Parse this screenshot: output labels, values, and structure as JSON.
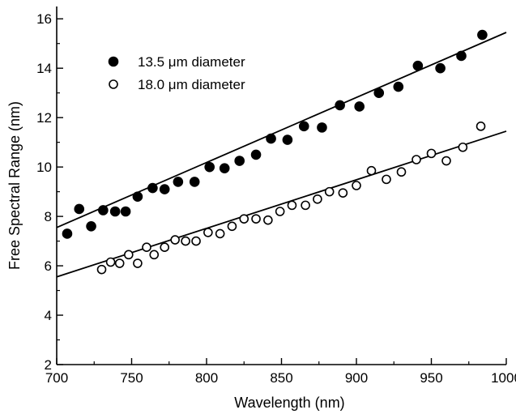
{
  "chart_data": {
    "type": "scatter",
    "xlabel": "Wavelength (nm)",
    "ylabel": "Free Spectral Range (nm)",
    "xlim": [
      700,
      1000
    ],
    "ylim": [
      2,
      16.5
    ],
    "x_ticks": [
      700,
      750,
      800,
      850,
      900,
      950,
      1000
    ],
    "y_ticks": [
      2,
      4,
      6,
      8,
      10,
      12,
      14,
      16
    ],
    "grid": false,
    "legend_position": "top-left",
    "series": [
      {
        "name": "13.5 μm diameter",
        "marker": "filled-circle",
        "color": "#000000",
        "points": [
          [
            707,
            7.3
          ],
          [
            715,
            8.3
          ],
          [
            723,
            7.6
          ],
          [
            731,
            8.25
          ],
          [
            739,
            8.2
          ],
          [
            746,
            8.2
          ],
          [
            754,
            8.8
          ],
          [
            764,
            9.15
          ],
          [
            772,
            9.1
          ],
          [
            781,
            9.4
          ],
          [
            792,
            9.4
          ],
          [
            802,
            10.0
          ],
          [
            812,
            9.95
          ],
          [
            822,
            10.25
          ],
          [
            833,
            10.5
          ],
          [
            843,
            11.15
          ],
          [
            854,
            11.1
          ],
          [
            865,
            11.65
          ],
          [
            877,
            11.6
          ],
          [
            889,
            12.5
          ],
          [
            902,
            12.45
          ],
          [
            915,
            13.0
          ],
          [
            928,
            13.25
          ],
          [
            941,
            14.1
          ],
          [
            956,
            14.0
          ],
          [
            970,
            14.5
          ],
          [
            984,
            15.35
          ]
        ],
        "fit": [
          [
            700,
            7.55
          ],
          [
            1000,
            15.45
          ]
        ]
      },
      {
        "name": "18.0 μm diameter",
        "marker": "open-circle",
        "color": "#000000",
        "points": [
          [
            730,
            5.85
          ],
          [
            736,
            6.15
          ],
          [
            742,
            6.1
          ],
          [
            748,
            6.45
          ],
          [
            754,
            6.1
          ],
          [
            760,
            6.75
          ],
          [
            765,
            6.45
          ],
          [
            772,
            6.75
          ],
          [
            779,
            7.05
          ],
          [
            786,
            7.0
          ],
          [
            793,
            7.0
          ],
          [
            801,
            7.35
          ],
          [
            809,
            7.3
          ],
          [
            817,
            7.6
          ],
          [
            825,
            7.9
          ],
          [
            833,
            7.9
          ],
          [
            841,
            7.85
          ],
          [
            849,
            8.2
          ],
          [
            857,
            8.45
          ],
          [
            866,
            8.45
          ],
          [
            874,
            8.7
          ],
          [
            882,
            9.0
          ],
          [
            891,
            8.95
          ],
          [
            900,
            9.25
          ],
          [
            910,
            9.85
          ],
          [
            920,
            9.5
          ],
          [
            930,
            9.8
          ],
          [
            940,
            10.3
          ],
          [
            950,
            10.55
          ],
          [
            960,
            10.25
          ],
          [
            971,
            10.8
          ],
          [
            983,
            11.65
          ]
        ],
        "fit": [
          [
            700,
            5.55
          ],
          [
            1000,
            11.45
          ]
        ]
      }
    ]
  }
}
